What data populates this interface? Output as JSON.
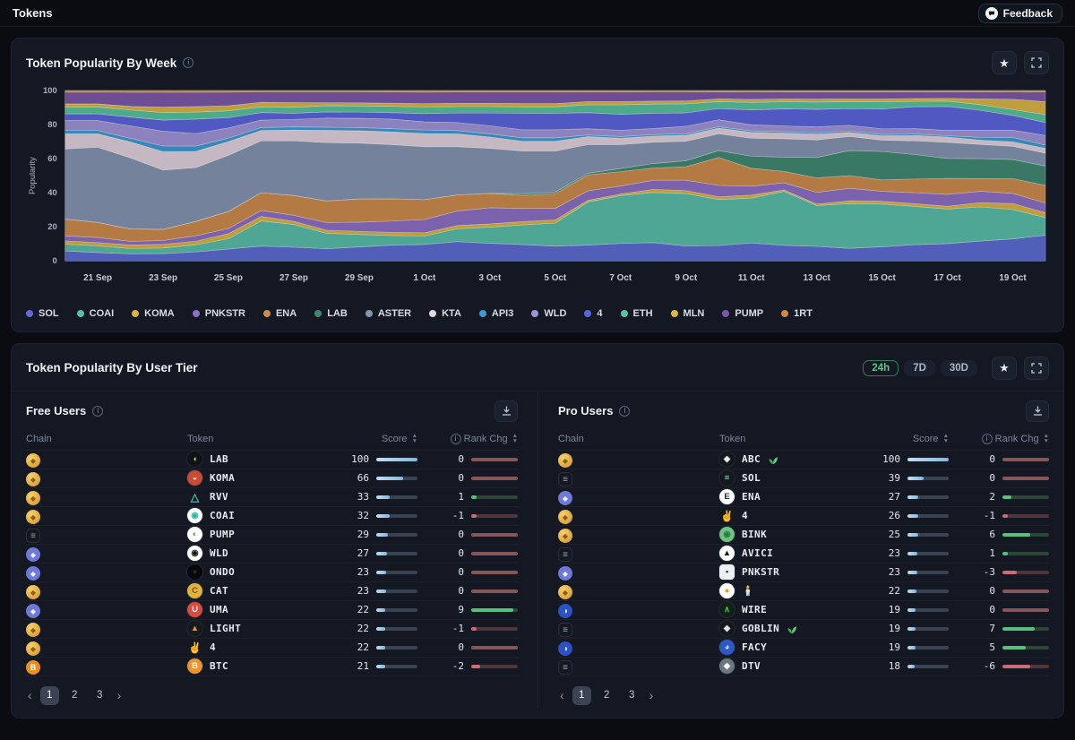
{
  "top_bar": {
    "title": "Tokens",
    "feedback_label": "Feedback",
    "feedback_icon": "chat-bubble-icon"
  },
  "week_card": {
    "title": "Token Popularity By Week",
    "icons": [
      "info-icon",
      "star-icon",
      "expand-icon"
    ],
    "chart_data": {
      "type": "area",
      "stacked": true,
      "normalized_to": 100,
      "title": "Token Popularity By Week",
      "ylabel": "Popularity",
      "ylim": [
        0,
        100
      ],
      "yticks": [
        0,
        20,
        40,
        60,
        80,
        100
      ],
      "grid": false,
      "legend_position": "bottom",
      "x": [
        "20 Sep",
        "21 Sep",
        "22 Sep",
        "23 Sep",
        "24 Sep",
        "25 Sep",
        "26 Sep",
        "27 Sep",
        "28 Sep",
        "29 Sep",
        "30 Sep",
        "1 Oct",
        "2 Oct",
        "3 Oct",
        "4 Oct",
        "5 Oct",
        "6 Oct",
        "7 Oct",
        "8 Oct",
        "9 Oct",
        "10 Oct",
        "11 Oct",
        "12 Oct",
        "13 Oct",
        "14 Oct",
        "15 Oct",
        "16 Oct",
        "17 Oct",
        "18 Oct",
        "19 Oct",
        "20 Oct"
      ],
      "xtick_indices": [
        1,
        3,
        5,
        7,
        9,
        11,
        13,
        15,
        17,
        19,
        21,
        23,
        25,
        27,
        29
      ],
      "series": [
        {
          "name": "SOL",
          "color": "#5d6cd3",
          "values": [
            6,
            5,
            4,
            4,
            5,
            7,
            10,
            9,
            8,
            9,
            10,
            10,
            12,
            11,
            10,
            9,
            10,
            11,
            12,
            10,
            11,
            12,
            11,
            10,
            9,
            10,
            12,
            13,
            14,
            15,
            16
          ]
        },
        {
          "name": "COAI",
          "color": "#58bfa8",
          "values": [
            4,
            4,
            3,
            3,
            4,
            6,
            17,
            15,
            10,
            8,
            6,
            5,
            8,
            10,
            12,
            14,
            27,
            30,
            33,
            35,
            33,
            30,
            38,
            28,
            32,
            30,
            28,
            26,
            24,
            20,
            11
          ]
        },
        {
          "name": "KOMA",
          "color": "#dcb53e",
          "values": [
            2,
            2,
            2,
            2,
            2,
            3,
            3,
            2,
            2,
            2,
            2,
            2,
            2,
            2,
            2,
            2,
            1,
            1,
            2,
            2,
            2,
            2,
            1,
            1,
            2,
            2,
            2,
            2,
            3,
            4,
            3
          ]
        },
        {
          "name": "PNKSTR",
          "color": "#8e6fc4",
          "values": [
            3,
            3,
            2,
            2,
            3,
            3,
            4,
            4,
            5,
            6,
            7,
            8,
            9,
            10,
            8,
            7,
            6,
            5,
            6,
            7,
            8,
            6,
            5,
            8,
            9,
            7,
            8,
            9,
            8,
            7,
            6
          ]
        },
        {
          "name": "ENA",
          "color": "#d08c4a",
          "values": [
            10,
            9,
            7,
            6,
            8,
            10,
            12,
            13,
            14,
            15,
            14,
            12,
            10,
            9,
            8,
            9,
            10,
            9,
            8,
            9,
            20,
            12,
            8,
            10,
            9,
            8,
            10,
            12,
            9,
            10,
            11
          ]
        },
        {
          "name": "LAB",
          "color": "#3e8a70",
          "values": [
            0,
            0,
            0,
            0,
            0,
            0,
            0,
            0,
            0,
            0,
            0,
            0,
            0,
            0,
            1,
            1,
            1,
            2,
            3,
            4,
            5,
            8,
            10,
            14,
            18,
            20,
            18,
            15,
            14,
            13,
            12
          ]
        },
        {
          "name": "ASTER",
          "color": "#8695b1",
          "values": [
            42,
            45,
            40,
            32,
            30,
            33,
            35,
            36,
            38,
            36,
            34,
            32,
            30,
            28,
            26,
            25,
            18,
            15,
            14,
            13,
            12,
            12,
            13,
            12,
            10,
            8,
            10,
            12,
            10,
            9,
            8
          ]
        },
        {
          "name": "KTA",
          "color": "#e4d5de",
          "values": [
            9,
            8,
            9,
            10,
            9,
            8,
            7,
            7,
            8,
            8,
            8,
            8,
            8,
            7,
            6,
            6,
            5,
            4,
            4,
            4,
            4,
            4,
            4,
            4,
            3,
            3,
            4,
            4,
            3,
            3,
            3
          ]
        },
        {
          "name": "API3",
          "color": "#3d9bd4",
          "values": [
            2,
            2,
            2,
            3,
            3,
            2,
            2,
            2,
            2,
            2,
            2,
            2,
            2,
            2,
            2,
            2,
            1,
            1,
            1,
            1,
            1,
            1,
            1,
            1,
            1,
            1,
            1,
            1,
            2,
            3,
            2
          ]
        },
        {
          "name": "WLD",
          "color": "#a195d9",
          "values": [
            6,
            6,
            7,
            8,
            7,
            6,
            5,
            5,
            6,
            6,
            6,
            5,
            5,
            5,
            5,
            5,
            4,
            4,
            4,
            5,
            5,
            4,
            4,
            4,
            4,
            4,
            4,
            4,
            5,
            5,
            6
          ]
        },
        {
          "name": "4",
          "color": "#5965dd",
          "values": [
            4,
            4,
            5,
            6,
            8,
            6,
            5,
            4,
            4,
            4,
            4,
            5,
            6,
            8,
            10,
            10,
            10,
            10,
            10,
            9,
            8,
            10,
            12,
            12,
            12,
            14,
            16,
            18,
            14,
            10,
            8
          ]
        },
        {
          "name": "ETH",
          "color": "#57c69f",
          "values": [
            4,
            4,
            4,
            4,
            4,
            4,
            4,
            4,
            4,
            4,
            4,
            4,
            4,
            4,
            4,
            4,
            5,
            6,
            6,
            6,
            5,
            5,
            5,
            5,
            5,
            5,
            4,
            4,
            4,
            4,
            5
          ]
        },
        {
          "name": "MLN",
          "color": "#ddb742",
          "values": [
            2,
            2,
            2,
            3,
            3,
            3,
            3,
            3,
            2,
            2,
            2,
            2,
            2,
            2,
            2,
            2,
            2,
            2,
            2,
            2,
            2,
            2,
            2,
            2,
            2,
            2,
            2,
            2,
            4,
            7,
            8
          ]
        },
        {
          "name": "PUMP",
          "color": "#7c58a8",
          "values": [
            7,
            7,
            8,
            8,
            8,
            8,
            7,
            7,
            7,
            7,
            7,
            7,
            7,
            7,
            7,
            7,
            6,
            6,
            6,
            6,
            5,
            5,
            5,
            5,
            5,
            5,
            5,
            5,
            5,
            5,
            6
          ]
        },
        {
          "name": "1RT",
          "color": "#d4873e",
          "values": [
            1,
            1,
            1,
            1,
            1,
            1,
            1,
            1,
            1,
            1,
            1,
            1,
            1,
            1,
            1,
            1,
            1,
            1,
            1,
            1,
            1,
            1,
            1,
            1,
            1,
            1,
            1,
            1,
            1,
            1,
            1
          ]
        }
      ]
    }
  },
  "tier_card": {
    "title": "Token Popularity By User Tier",
    "ranges": [
      {
        "label": "24h",
        "active": true
      },
      {
        "label": "7D",
        "active": false
      },
      {
        "label": "30D",
        "active": false
      }
    ],
    "icons": [
      "star-icon",
      "expand-icon"
    ],
    "columns": {
      "chain": "Chain",
      "token": "Token",
      "score": "Score",
      "rank": "Rank Chg"
    },
    "colors": {
      "accent_green": "#55c88b",
      "score_fill": "#9cc8e8",
      "rank_up": "#58c07e",
      "rank_down": "#cb6b77",
      "rank_zero": "#875659"
    },
    "tables": [
      {
        "key": "free",
        "heading": "Free Users",
        "rows": [
          {
            "chain": "bnb",
            "name": "LAB",
            "icon": {
              "bg": "#0f1216",
              "fg": "#ccd84a",
              "glyph": "◖"
            },
            "score": 100,
            "rank": 0
          },
          {
            "chain": "bnb",
            "name": "KOMA",
            "icon": {
              "bg": "#cb4a36",
              "fg": "#ffd9a3",
              "glyph": "◒"
            },
            "score": 66,
            "rank": 0
          },
          {
            "chain": "bnb",
            "name": "RVV",
            "icon": {
              "bg": "none",
              "fg": "#56c0ae",
              "glyph": "△"
            },
            "score": 33,
            "rank": 1
          },
          {
            "chain": "bnb",
            "name": "COAI",
            "icon": {
              "bg": "#ffffff",
              "fg": "#35b3a2",
              "glyph": "◉"
            },
            "score": 32,
            "rank": -1
          },
          {
            "chain": "sol",
            "name": "PUMP",
            "icon": {
              "bg": "#ffffff",
              "fg": "#43a85c",
              "glyph": "◐"
            },
            "score": 29,
            "rank": 0
          },
          {
            "chain": "eth",
            "name": "WLD",
            "icon": {
              "bg": "#ffffff",
              "fg": "#15181d",
              "glyph": "◉"
            },
            "score": 27,
            "rank": 0
          },
          {
            "chain": "eth",
            "name": "ONDO",
            "icon": {
              "bg": "#05070a",
              "fg": "#23272e",
              "glyph": "●"
            },
            "score": 23,
            "rank": 0
          },
          {
            "chain": "bnb",
            "name": "CAT",
            "icon": {
              "bg": "#e2b33c",
              "fg": "#7a5315",
              "glyph": "C"
            },
            "score": 23,
            "rank": 0
          },
          {
            "chain": "eth",
            "name": "UMA",
            "icon": {
              "bg": "#d94b42",
              "fg": "#ffffff",
              "glyph": "U"
            },
            "score": 22,
            "rank": 9
          },
          {
            "chain": "bnb",
            "name": "LIGHT",
            "icon": {
              "bg": "#17191d",
              "fg": "#e8923a",
              "glyph": "▲"
            },
            "score": 22,
            "rank": -1
          },
          {
            "chain": "bnb",
            "name": "4",
            "icon": {
              "bg": "none",
              "fg": "#e5c14e",
              "glyph": "✌"
            },
            "score": 22,
            "rank": 0
          },
          {
            "chain": "btc",
            "name": "BTC",
            "icon": {
              "bg": "#f0932a",
              "fg": "#ffffff",
              "glyph": "B"
            },
            "score": 21,
            "rank": -2
          }
        ],
        "pagination": {
          "prev": "‹",
          "pages": [
            "1",
            "2",
            "3"
          ],
          "next": "›",
          "active": "1"
        }
      },
      {
        "key": "pro",
        "heading": "Pro Users",
        "rows": [
          {
            "chain": "bnb",
            "name": "ABC",
            "icon": {
              "bg": "#14181f",
              "fg": "#e8ebf1",
              "glyph": "◆"
            },
            "sprout": true,
            "score": 100,
            "rank": 0
          },
          {
            "chain": "sol",
            "name": "SOL",
            "icon": {
              "bg": "#14181f",
              "fg": "#86dcc0",
              "glyph": "≡"
            },
            "score": 39,
            "rank": 0
          },
          {
            "chain": "eth",
            "name": "ENA",
            "icon": {
              "bg": "#ffffff",
              "fg": "#13294a",
              "glyph": "E"
            },
            "score": 27,
            "rank": 2
          },
          {
            "chain": "bnb",
            "name": "4",
            "icon": {
              "bg": "none",
              "fg": "#e5c14e",
              "glyph": "✌"
            },
            "score": 26,
            "rank": -1
          },
          {
            "chain": "bnb",
            "name": "BINK",
            "icon": {
              "bg": "#6fc284",
              "fg": "#2c7a45",
              "glyph": "◉"
            },
            "score": 25,
            "rank": 6
          },
          {
            "chain": "sol",
            "name": "AVICI",
            "icon": {
              "bg": "#ffffff",
              "fg": "#15181d",
              "glyph": "▲"
            },
            "score": 23,
            "rank": 1
          },
          {
            "chain": "eth",
            "name": "PNKSTR",
            "icon": {
              "bg": "#eceff3",
              "fg": "#3a3f46",
              "glyph": "▪",
              "square": true
            },
            "score": 23,
            "rank": -3
          },
          {
            "chain": "bnb",
            "name": "🕯️",
            "icon": {
              "bg": "#ffffff",
              "fg": "#d8a62f",
              "glyph": "●"
            },
            "score": 22,
            "rank": 0
          },
          {
            "chain": "base",
            "name": "WIRE",
            "icon": {
              "bg": "#132018",
              "fg": "#4cc06a",
              "glyph": "∧"
            },
            "score": 19,
            "rank": 0
          },
          {
            "chain": "sol",
            "name": "GOBLIN",
            "icon": {
              "bg": "#14181f",
              "fg": "#dfe3ea",
              "glyph": "◆"
            },
            "sprout": true,
            "score": 19,
            "rank": 7
          },
          {
            "chain": "base",
            "name": "FACY",
            "icon": {
              "bg": "#2e59c4",
              "fg": "#cfe0ff",
              "glyph": "◕"
            },
            "score": 19,
            "rank": 5
          },
          {
            "chain": "sol",
            "name": "DTV",
            "icon": {
              "bg": "#6d7581",
              "fg": "#ffffff",
              "glyph": "◆"
            },
            "score": 18,
            "rank": -6
          }
        ],
        "pagination": {
          "prev": "‹",
          "pages": [
            "1",
            "2",
            "3"
          ],
          "next": "›",
          "active": "1"
        }
      }
    ]
  }
}
